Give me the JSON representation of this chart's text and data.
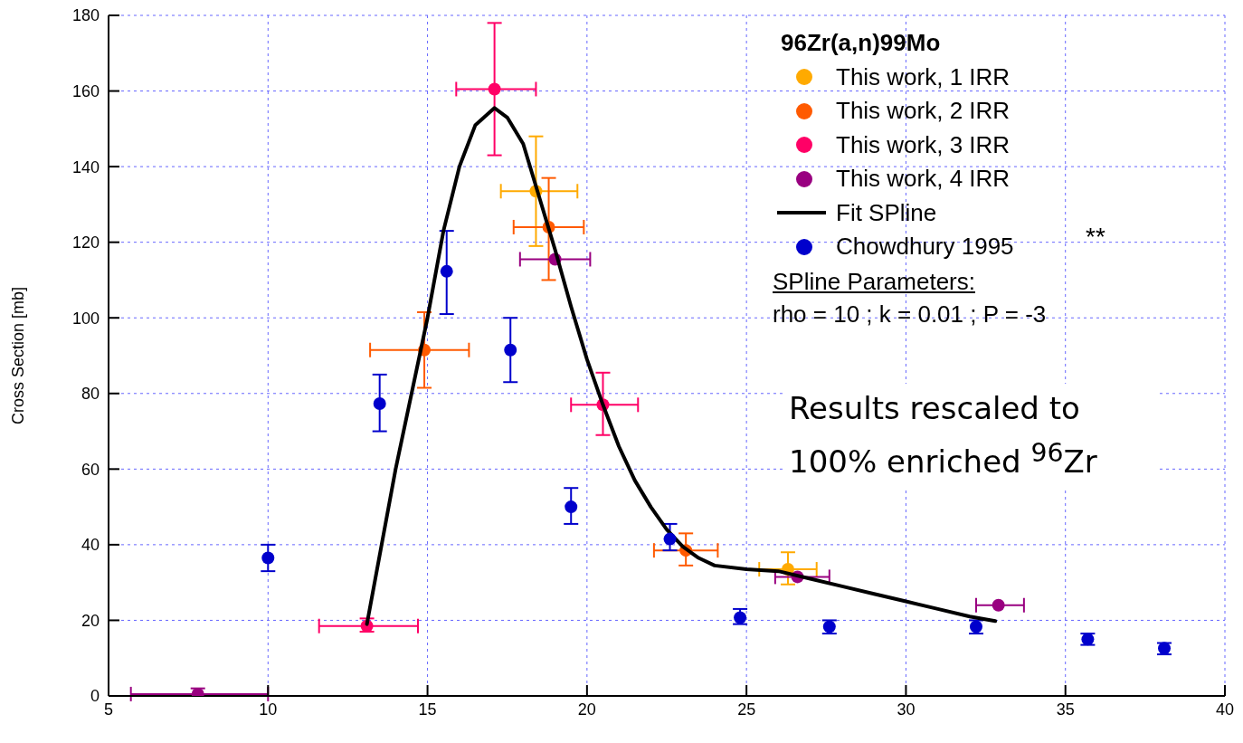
{
  "chart_data": {
    "type": "scatter",
    "ylabel": "Cross Section [mb]",
    "legend_title": "96Zr(a,n)99Mo",
    "legend": "top right",
    "grid": true,
    "marker": "circle",
    "xlim": [
      5,
      40
    ],
    "xticks": [
      5,
      10,
      15,
      20,
      25,
      30,
      35,
      40
    ],
    "ylim": [
      0,
      180
    ],
    "yticks": [
      0,
      20,
      40,
      60,
      80,
      100,
      120,
      140,
      160,
      180
    ],
    "series": [
      {
        "name": "This work, 1 IRR",
        "color": "#ffaa00",
        "x": [
          18.4,
          26.3
        ],
        "values": [
          133.5,
          33.5
        ],
        "errors": [
          [
            119,
            148
          ],
          [
            29.5,
            38
          ]
        ],
        "xerrors": [
          [
            17.3,
            19.7
          ],
          [
            25.4,
            27.2
          ]
        ]
      },
      {
        "name": "This work, 2 IRR",
        "color": "#ff5a00",
        "x": [
          14.9,
          18.8,
          23.1
        ],
        "values": [
          91.5,
          124,
          38.5
        ],
        "errors": [
          [
            81.5,
            101.5
          ],
          [
            110,
            137
          ],
          [
            34.5,
            43
          ]
        ],
        "xerrors": [
          [
            13.2,
            16.3
          ],
          [
            17.7,
            19.9
          ],
          [
            22.1,
            24.1
          ]
        ]
      },
      {
        "name": "This work, 3 IRR",
        "color": "#ff0066",
        "x": [
          13.1,
          17.1,
          20.5
        ],
        "values": [
          18.5,
          160.5,
          77
        ],
        "errors": [
          [
            17,
            20.5
          ],
          [
            143,
            178
          ],
          [
            69,
            85.5
          ]
        ],
        "xerrors": [
          [
            11.6,
            14.7
          ],
          [
            15.9,
            18.4
          ],
          [
            19.5,
            21.6
          ]
        ]
      },
      {
        "name": "This work, 4 IRR",
        "color": "#990080",
        "x": [
          7.8,
          19,
          26.6,
          32.9
        ],
        "values": [
          0.5,
          115.5,
          31.5,
          24
        ],
        "errors": [
          [
            0,
            2
          ],
          null,
          null,
          null
        ],
        "xerrors": [
          [
            5.7,
            10
          ],
          [
            17.9,
            20.1
          ],
          [
            25.9,
            27.6
          ],
          [
            32.2,
            33.7
          ]
        ]
      },
      {
        "name": "Fit SPline",
        "type": "line",
        "color": "#000000",
        "marker": "none",
        "x": [
          13.1,
          14,
          15,
          15.5,
          16,
          16.5,
          17.1,
          17.5,
          18,
          18.5,
          19,
          19.5,
          20,
          20.5,
          21,
          21.5,
          22,
          22.5,
          23,
          23.5,
          24,
          25,
          26,
          27,
          28,
          29,
          30,
          31,
          32,
          32.8
        ],
        "values": [
          19,
          60,
          100,
          123,
          140,
          151,
          155.5,
          153,
          146,
          132,
          118,
          103,
          89,
          77,
          66,
          57,
          50,
          44,
          39.5,
          36.5,
          34.5,
          33.5,
          33,
          31,
          29,
          27,
          25,
          23,
          21,
          19.8
        ]
      },
      {
        "name": "Chowdhury 1995",
        "color": "#0000cc",
        "x": [
          10,
          13.5,
          15.6,
          17.6,
          19.5,
          22.6,
          24.8,
          27.6,
          32.2,
          35.7,
          38.1
        ],
        "values": [
          36.5,
          77.3,
          112.3,
          91.5,
          50,
          41.5,
          20.7,
          18.3,
          18.3,
          15,
          12.6
        ],
        "errors": [
          [
            33,
            40
          ],
          [
            70,
            85
          ],
          [
            101,
            123
          ],
          [
            83,
            100
          ],
          [
            45.5,
            55
          ],
          [
            38.5,
            45.5
          ],
          [
            19,
            23
          ],
          [
            16.5,
            20
          ],
          [
            16.5,
            20
          ],
          [
            13.5,
            16.5
          ],
          [
            11,
            14
          ]
        ]
      }
    ],
    "annotations": [
      "**",
      "SPline Parameters:",
      "rho = 10 ; k = 0.01 ; P = -3",
      "Results rescaled to 100% enriched $^{96}$Zr"
    ]
  }
}
